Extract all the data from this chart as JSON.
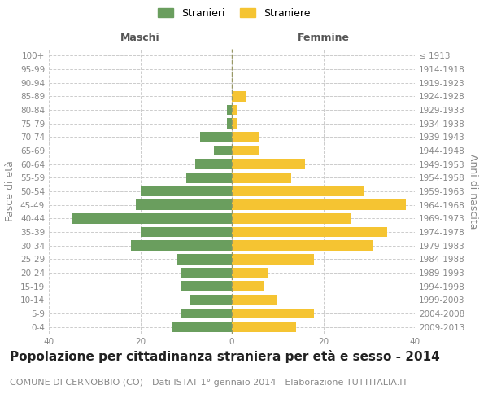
{
  "age_groups": [
    "100+",
    "95-99",
    "90-94",
    "85-89",
    "80-84",
    "75-79",
    "70-74",
    "65-69",
    "60-64",
    "55-59",
    "50-54",
    "45-49",
    "40-44",
    "35-39",
    "30-34",
    "25-29",
    "20-24",
    "15-19",
    "10-14",
    "5-9",
    "0-4"
  ],
  "birth_years": [
    "≤ 1913",
    "1914-1918",
    "1919-1923",
    "1924-1928",
    "1929-1933",
    "1934-1938",
    "1939-1943",
    "1944-1948",
    "1949-1953",
    "1954-1958",
    "1959-1963",
    "1964-1968",
    "1969-1973",
    "1974-1978",
    "1979-1983",
    "1984-1988",
    "1989-1993",
    "1994-1998",
    "1999-2003",
    "2004-2008",
    "2009-2013"
  ],
  "maschi": [
    0,
    0,
    0,
    0,
    1,
    1,
    7,
    4,
    8,
    10,
    20,
    21,
    35,
    20,
    22,
    12,
    11,
    11,
    9,
    11,
    13
  ],
  "femmine": [
    0,
    0,
    0,
    3,
    1,
    1,
    6,
    6,
    16,
    13,
    29,
    38,
    26,
    34,
    31,
    18,
    8,
    7,
    10,
    18,
    14
  ],
  "maschi_color": "#6a9e5e",
  "femmine_color": "#f5c432",
  "background_color": "#ffffff",
  "grid_color": "#cccccc",
  "title": "Popolazione per cittadinanza straniera per età e sesso - 2014",
  "subtitle": "COMUNE DI CERNOBBIO (CO) - Dati ISTAT 1° gennaio 2014 - Elaborazione TUTTITALIA.IT",
  "ylabel_left": "Fasce di età",
  "ylabel_right": "Anni di nascita",
  "xlabel_maschi": "Maschi",
  "xlabel_femmine": "Femmine",
  "legend_maschi": "Stranieri",
  "legend_femmine": "Straniere",
  "xlim": 40,
  "title_fontsize": 11,
  "subtitle_fontsize": 8,
  "tick_fontsize": 7.5,
  "label_fontsize": 9
}
